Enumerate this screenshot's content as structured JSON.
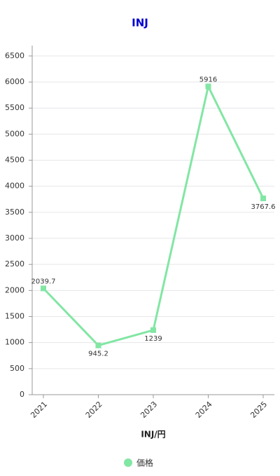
{
  "chart_data": {
    "type": "line",
    "title": "INJ",
    "x_label": "INJ/円",
    "categories": [
      "2021",
      "2022",
      "2023",
      "2024",
      "2025"
    ],
    "series": [
      {
        "name": "価格",
        "color": "#82e6a4",
        "values": [
          2039.7,
          945.2,
          1239,
          5916,
          3767.6
        ]
      }
    ],
    "ylim": [
      0,
      6700
    ],
    "yticks": [
      0,
      500,
      1000,
      1500,
      2000,
      2500,
      3000,
      3500,
      4000,
      4500,
      5000,
      5500,
      6000,
      6500
    ],
    "grid": true,
    "legend": "bottom"
  }
}
